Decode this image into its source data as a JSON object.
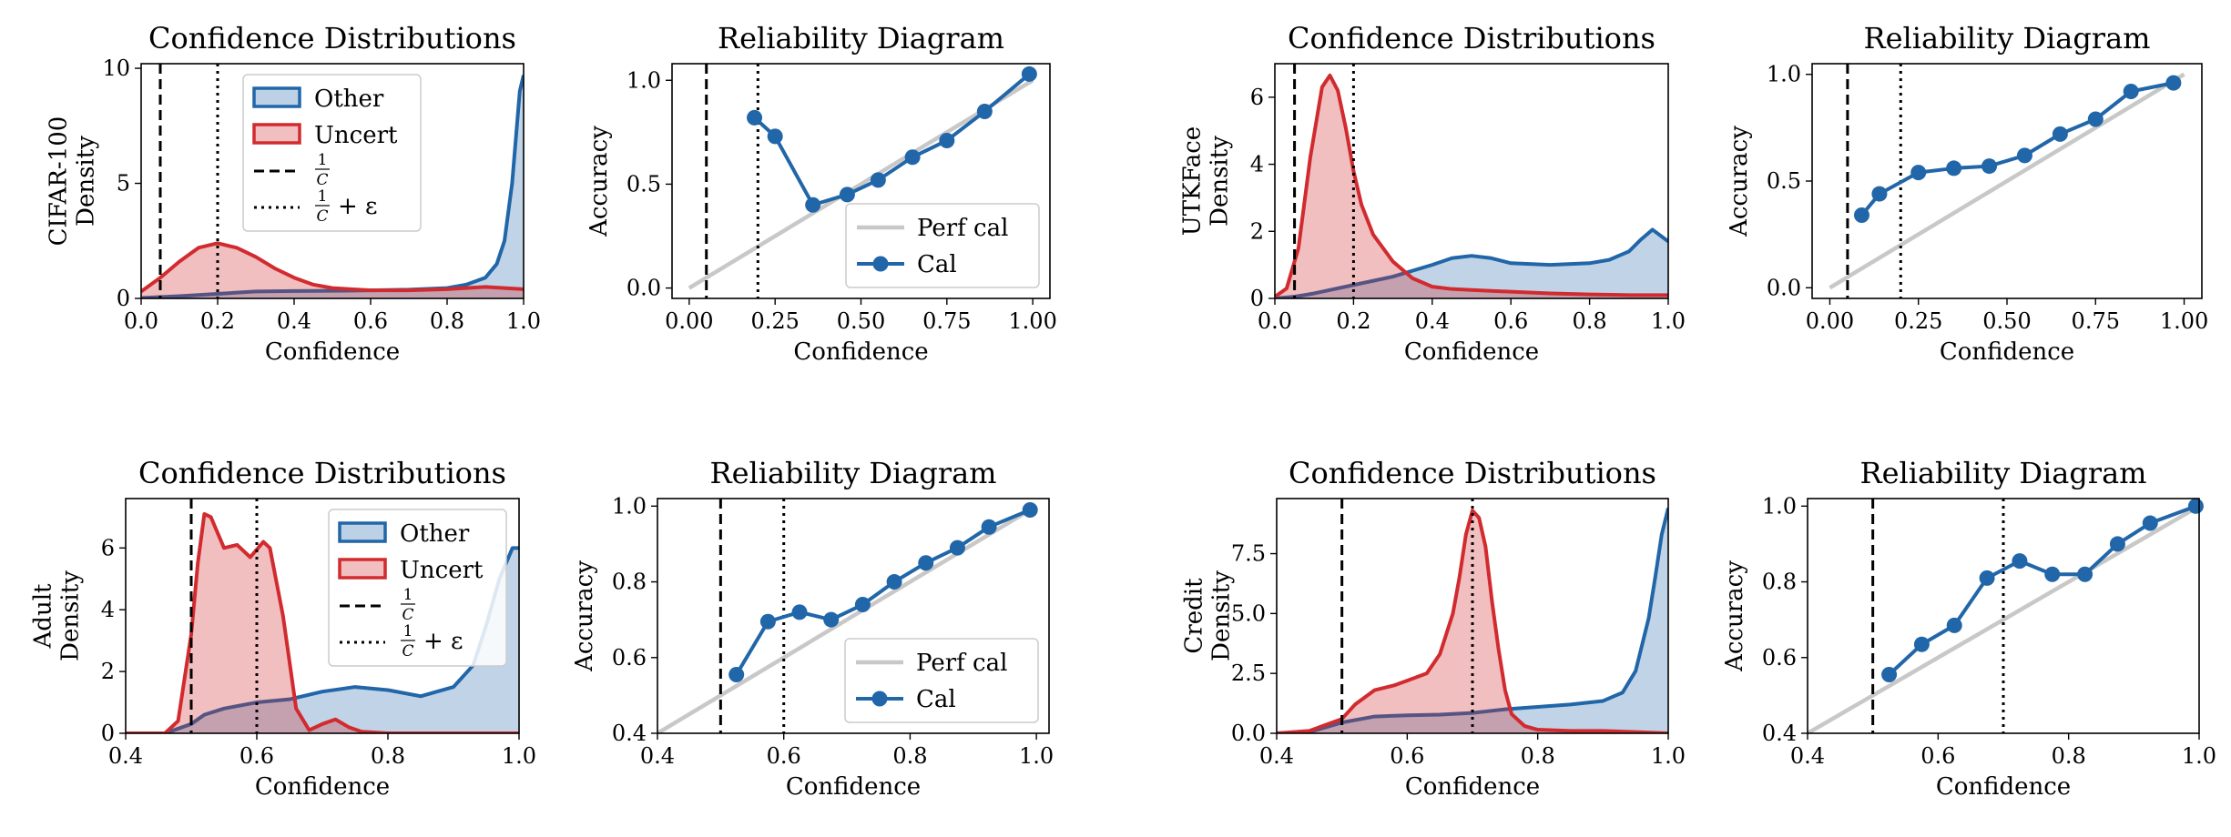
{
  "figure": {
    "colors": {
      "other": "#2166a8",
      "uncert": "#d12b2f",
      "perf": "#c8c8c8",
      "vline": "#000000"
    }
  },
  "chart_data": [
    {
      "type": "area",
      "panel": "cifar-density",
      "title": "Confidence Distributions",
      "ylabel": "CIFAR-100\nDensity",
      "xlabel": "Confidence",
      "xlim": [
        0,
        1
      ],
      "ylim": [
        0,
        10.2
      ],
      "xticks": [
        "0.0",
        "0.2",
        "0.4",
        "0.6",
        "0.8",
        "1.0"
      ],
      "xtick_values": [
        0,
        0.2,
        0.4,
        0.6,
        0.8,
        1.0
      ],
      "yticks": [
        "0",
        "5",
        "10"
      ],
      "ytick_values": [
        0,
        5,
        10
      ],
      "vlines": [
        {
          "x": 0.05,
          "style": "dashed"
        },
        {
          "x": 0.2,
          "style": "dotted"
        }
      ],
      "legend": {
        "position": "upper-center",
        "entries": [
          {
            "kind": "patch",
            "series": "other",
            "label": "Other"
          },
          {
            "kind": "patch",
            "series": "uncert",
            "label": "Uncert"
          },
          {
            "kind": "dashed",
            "label": "1/C"
          },
          {
            "kind": "dotted",
            "label": "1/C + ε"
          }
        ]
      },
      "series": [
        {
          "key": "other",
          "name": "Other",
          "x": [
            0,
            0.1,
            0.2,
            0.3,
            0.4,
            0.5,
            0.6,
            0.7,
            0.8,
            0.85,
            0.9,
            0.93,
            0.95,
            0.97,
            0.98,
            0.99,
            1.0
          ],
          "y": [
            0.02,
            0.1,
            0.2,
            0.3,
            0.32,
            0.33,
            0.35,
            0.38,
            0.45,
            0.6,
            0.9,
            1.5,
            2.5,
            5.0,
            7.0,
            9.0,
            9.7
          ]
        },
        {
          "key": "uncert",
          "name": "Uncert",
          "x": [
            0,
            0.05,
            0.1,
            0.15,
            0.2,
            0.25,
            0.3,
            0.35,
            0.4,
            0.45,
            0.5,
            0.6,
            0.7,
            0.8,
            0.9,
            1.0
          ],
          "y": [
            0.3,
            0.9,
            1.6,
            2.2,
            2.4,
            2.2,
            1.8,
            1.3,
            0.9,
            0.6,
            0.45,
            0.35,
            0.35,
            0.4,
            0.5,
            0.4
          ]
        }
      ]
    },
    {
      "type": "line",
      "panel": "cifar-reliability",
      "title": "Reliability Diagram",
      "ylabel": "Accuracy",
      "xlabel": "Confidence",
      "xlim": [
        -0.05,
        1.05
      ],
      "ylim": [
        -0.05,
        1.08
      ],
      "xticks": [
        "0.00",
        "0.25",
        "0.50",
        "0.75",
        "1.00"
      ],
      "xtick_values": [
        0,
        0.25,
        0.5,
        0.75,
        1.0
      ],
      "yticks": [
        "0.0",
        "0.5",
        "1.0"
      ],
      "ytick_values": [
        0,
        0.5,
        1.0
      ],
      "vlines": [
        {
          "x": 0.05,
          "style": "dashed"
        },
        {
          "x": 0.2,
          "style": "dotted"
        }
      ],
      "perfect": [
        [
          0,
          0
        ],
        [
          1,
          1
        ]
      ],
      "legend": {
        "position": "lower-right",
        "entries": [
          {
            "kind": "line-perf",
            "label": "Perf cal"
          },
          {
            "kind": "line-marker",
            "label": "Cal"
          }
        ]
      },
      "series": [
        {
          "key": "other",
          "name": "Cal",
          "x": [
            0.19,
            0.25,
            0.36,
            0.46,
            0.55,
            0.65,
            0.75,
            0.86,
            0.99
          ],
          "y": [
            0.82,
            0.73,
            0.4,
            0.45,
            0.52,
            0.63,
            0.71,
            0.85,
            1.03
          ]
        }
      ]
    },
    {
      "type": "area",
      "panel": "utk-density",
      "title": "Confidence Distributions",
      "ylabel": "UTKFace\nDensity",
      "xlabel": "Confidence",
      "xlim": [
        0,
        1
      ],
      "ylim": [
        0,
        7.0
      ],
      "xticks": [
        "0.0",
        "0.2",
        "0.4",
        "0.6",
        "0.8",
        "1.0"
      ],
      "xtick_values": [
        0,
        0.2,
        0.4,
        0.6,
        0.8,
        1.0
      ],
      "yticks": [
        "0",
        "2",
        "4",
        "6"
      ],
      "ytick_values": [
        0,
        2,
        4,
        6
      ],
      "vlines": [
        {
          "x": 0.05,
          "style": "dashed"
        },
        {
          "x": 0.2,
          "style": "dotted"
        }
      ],
      "series": [
        {
          "key": "other",
          "name": "Other",
          "x": [
            0,
            0.05,
            0.1,
            0.2,
            0.3,
            0.4,
            0.45,
            0.5,
            0.55,
            0.6,
            0.7,
            0.8,
            0.85,
            0.9,
            0.93,
            0.96,
            1.0
          ],
          "y": [
            0,
            0.05,
            0.15,
            0.4,
            0.65,
            1.0,
            1.2,
            1.27,
            1.2,
            1.05,
            1.0,
            1.05,
            1.15,
            1.4,
            1.75,
            2.05,
            1.7
          ]
        },
        {
          "key": "uncert",
          "name": "Uncert",
          "x": [
            0,
            0.03,
            0.06,
            0.09,
            0.12,
            0.14,
            0.16,
            0.18,
            0.2,
            0.22,
            0.25,
            0.3,
            0.35,
            0.4,
            0.45,
            0.5,
            0.6,
            0.7,
            0.8,
            0.9,
            1.0
          ],
          "y": [
            0.05,
            0.3,
            1.5,
            4.2,
            6.3,
            6.65,
            6.2,
            5.1,
            3.8,
            2.8,
            1.9,
            1.1,
            0.6,
            0.35,
            0.28,
            0.25,
            0.2,
            0.15,
            0.12,
            0.1,
            0.1
          ]
        }
      ]
    },
    {
      "type": "line",
      "panel": "utk-reliability",
      "title": "Reliability Diagram",
      "ylabel": "Accuracy",
      "xlabel": "Confidence",
      "xlim": [
        -0.05,
        1.05
      ],
      "ylim": [
        -0.05,
        1.05
      ],
      "xticks": [
        "0.00",
        "0.25",
        "0.50",
        "0.75",
        "1.00"
      ],
      "xtick_values": [
        0,
        0.25,
        0.5,
        0.75,
        1.0
      ],
      "yticks": [
        "0.0",
        "0.5",
        "1.0"
      ],
      "ytick_values": [
        0,
        0.5,
        1.0
      ],
      "vlines": [
        {
          "x": 0.05,
          "style": "dashed"
        },
        {
          "x": 0.2,
          "style": "dotted"
        }
      ],
      "perfect": [
        [
          0,
          0
        ],
        [
          1,
          1
        ]
      ],
      "series": [
        {
          "key": "other",
          "name": "Cal",
          "x": [
            0.09,
            0.14,
            0.25,
            0.35,
            0.45,
            0.55,
            0.65,
            0.75,
            0.85,
            0.97
          ],
          "y": [
            0.34,
            0.44,
            0.54,
            0.56,
            0.57,
            0.62,
            0.72,
            0.79,
            0.92,
            0.96
          ]
        }
      ]
    },
    {
      "type": "area",
      "panel": "adult-density",
      "title": "Confidence Distributions",
      "ylabel": "Adult\nDensity",
      "xlabel": "Confidence",
      "xlim": [
        0.4,
        1.0
      ],
      "ylim": [
        0,
        7.6
      ],
      "xticks": [
        "0.4",
        "0.6",
        "0.8",
        "1.0"
      ],
      "xtick_values": [
        0.4,
        0.6,
        0.8,
        1.0
      ],
      "yticks": [
        "0",
        "2",
        "4",
        "6"
      ],
      "ytick_values": [
        0,
        2,
        4,
        6
      ],
      "vlines": [
        {
          "x": 0.5,
          "style": "dashed"
        },
        {
          "x": 0.6,
          "style": "dotted"
        }
      ],
      "legend": {
        "position": "upper-right",
        "entries": [
          {
            "kind": "patch",
            "series": "other",
            "label": "Other"
          },
          {
            "kind": "patch",
            "series": "uncert",
            "label": "Uncert"
          },
          {
            "kind": "dashed",
            "label": "1/C"
          },
          {
            "kind": "dotted",
            "label": "1/C + ε"
          }
        ]
      },
      "series": [
        {
          "key": "other",
          "name": "Other",
          "x": [
            0.4,
            0.46,
            0.5,
            0.52,
            0.55,
            0.6,
            0.65,
            0.7,
            0.75,
            0.8,
            0.85,
            0.9,
            0.93,
            0.95,
            0.97,
            0.99,
            1.0
          ],
          "y": [
            0,
            0,
            0.3,
            0.6,
            0.8,
            1.0,
            1.1,
            1.35,
            1.5,
            1.4,
            1.2,
            1.5,
            2.2,
            3.5,
            5.0,
            6.0,
            6.0
          ]
        },
        {
          "key": "uncert",
          "name": "Uncert",
          "x": [
            0.4,
            0.46,
            0.48,
            0.5,
            0.51,
            0.52,
            0.53,
            0.55,
            0.57,
            0.59,
            0.61,
            0.62,
            0.64,
            0.66,
            0.68,
            0.7,
            0.72,
            0.74,
            0.76,
            0.8,
            1.0
          ],
          "y": [
            0,
            0,
            0.4,
            3.2,
            5.5,
            7.1,
            7.0,
            6.0,
            6.1,
            5.7,
            6.2,
            6.0,
            3.8,
            0.8,
            0.1,
            0.3,
            0.45,
            0.2,
            0.05,
            0,
            0
          ]
        }
      ]
    },
    {
      "type": "line",
      "panel": "adult-reliability",
      "title": "Reliability Diagram",
      "ylabel": "Accuracy",
      "xlabel": "Confidence",
      "xlim": [
        0.4,
        1.02
      ],
      "ylim": [
        0.4,
        1.02
      ],
      "xticks": [
        "0.4",
        "0.6",
        "0.8",
        "1.0"
      ],
      "xtick_values": [
        0.4,
        0.6,
        0.8,
        1.0
      ],
      "yticks": [
        "0.4",
        "0.6",
        "0.8",
        "1.0"
      ],
      "ytick_values": [
        0.4,
        0.6,
        0.8,
        1.0
      ],
      "vlines": [
        {
          "x": 0.5,
          "style": "dashed"
        },
        {
          "x": 0.6,
          "style": "dotted"
        }
      ],
      "perfect": [
        [
          0.4,
          0.4
        ],
        [
          1,
          1
        ]
      ],
      "legend": {
        "position": "lower-right",
        "entries": [
          {
            "kind": "line-perf",
            "label": "Perf cal"
          },
          {
            "kind": "line-marker",
            "label": "Cal"
          }
        ]
      },
      "series": [
        {
          "key": "other",
          "name": "Cal",
          "x": [
            0.525,
            0.575,
            0.625,
            0.675,
            0.725,
            0.775,
            0.825,
            0.875,
            0.925,
            0.99
          ],
          "y": [
            0.555,
            0.695,
            0.72,
            0.7,
            0.74,
            0.8,
            0.85,
            0.89,
            0.945,
            0.99
          ]
        }
      ]
    },
    {
      "type": "area",
      "panel": "credit-density",
      "title": "Confidence Distributions",
      "ylabel": "Credit\nDensity",
      "xlabel": "Confidence",
      "xlim": [
        0.4,
        1.0
      ],
      "ylim": [
        0,
        9.8
      ],
      "xticks": [
        "0.4",
        "0.6",
        "0.8",
        "1.0"
      ],
      "xtick_values": [
        0.4,
        0.6,
        0.8,
        1.0
      ],
      "yticks": [
        "0.0",
        "2.5",
        "5.0",
        "7.5"
      ],
      "ytick_values": [
        0,
        2.5,
        5.0,
        7.5
      ],
      "vlines": [
        {
          "x": 0.5,
          "style": "dashed"
        },
        {
          "x": 0.7,
          "style": "dotted"
        }
      ],
      "series": [
        {
          "key": "other",
          "name": "Other",
          "x": [
            0.4,
            0.45,
            0.5,
            0.55,
            0.6,
            0.65,
            0.7,
            0.75,
            0.8,
            0.85,
            0.9,
            0.93,
            0.95,
            0.97,
            0.98,
            0.99,
            1.0
          ],
          "y": [
            0,
            0.05,
            0.45,
            0.7,
            0.75,
            0.78,
            0.85,
            1.0,
            1.1,
            1.2,
            1.35,
            1.7,
            2.6,
            4.8,
            6.5,
            8.3,
            9.4
          ]
        },
        {
          "key": "uncert",
          "name": "Uncert",
          "x": [
            0.4,
            0.45,
            0.5,
            0.52,
            0.55,
            0.58,
            0.6,
            0.63,
            0.65,
            0.67,
            0.68,
            0.69,
            0.7,
            0.71,
            0.72,
            0.73,
            0.74,
            0.75,
            0.76,
            0.78,
            0.8,
            0.85,
            0.9,
            0.95,
            1.0
          ],
          "y": [
            0,
            0.1,
            0.6,
            1.2,
            1.8,
            2.0,
            2.2,
            2.5,
            3.3,
            5.0,
            6.5,
            8.3,
            9.3,
            9.0,
            7.8,
            5.5,
            3.5,
            1.8,
            0.8,
            0.3,
            0.15,
            0.1,
            0.1,
            0.05,
            0
          ]
        }
      ]
    },
    {
      "type": "line",
      "panel": "credit-reliability",
      "title": "Reliability Diagram",
      "ylabel": "Accuracy",
      "xlabel": "Confidence",
      "xlim": [
        0.4,
        1.0
      ],
      "ylim": [
        0.4,
        1.02
      ],
      "xticks": [
        "0.4",
        "0.6",
        "0.8",
        "1.0"
      ],
      "xtick_values": [
        0.4,
        0.6,
        0.8,
        1.0
      ],
      "yticks": [
        "0.4",
        "0.6",
        "0.8",
        "1.0"
      ],
      "ytick_values": [
        0.4,
        0.6,
        0.8,
        1.0
      ],
      "vlines": [
        {
          "x": 0.5,
          "style": "dashed"
        },
        {
          "x": 0.7,
          "style": "dotted"
        }
      ],
      "perfect": [
        [
          0.4,
          0.4
        ],
        [
          1,
          1
        ]
      ],
      "series": [
        {
          "key": "other",
          "name": "Cal",
          "x": [
            0.525,
            0.575,
            0.625,
            0.675,
            0.725,
            0.775,
            0.825,
            0.875,
            0.925,
            0.995
          ],
          "y": [
            0.555,
            0.635,
            0.685,
            0.81,
            0.855,
            0.82,
            0.82,
            0.9,
            0.955,
            1.0
          ]
        }
      ]
    }
  ]
}
